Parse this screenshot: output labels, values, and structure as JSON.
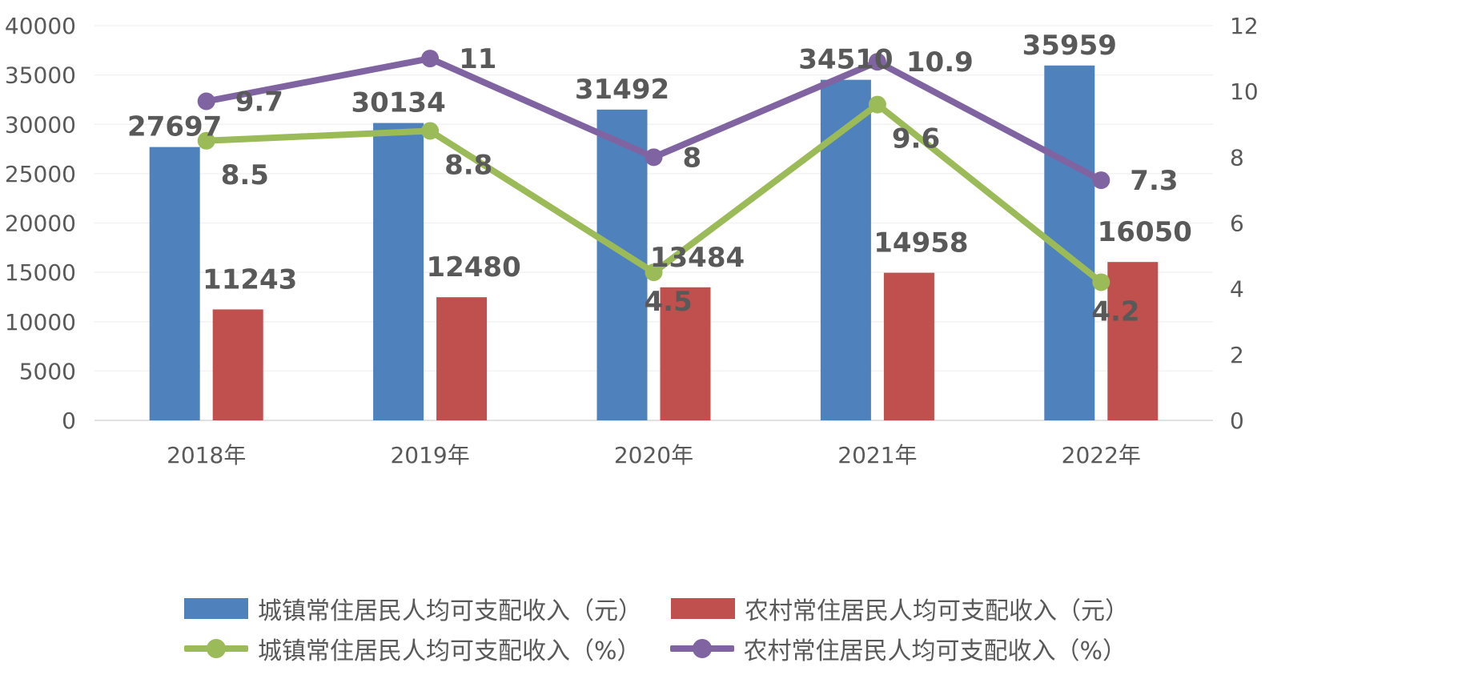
{
  "chart_data": {
    "type": "bar",
    "categories": [
      "2018年",
      "2019年",
      "2020年",
      "2021年",
      "2022年"
    ],
    "ylim": [
      0,
      40000
    ],
    "y2lim": [
      0,
      12
    ],
    "yticks": [
      "0",
      "5000",
      "10000",
      "15000",
      "20000",
      "25000",
      "30000",
      "35000",
      "40000"
    ],
    "y2ticks": [
      "0",
      "2",
      "4",
      "6",
      "8",
      "10",
      "12"
    ],
    "grid": true,
    "legend_position": "bottom",
    "series": [
      {
        "name": "城镇常住居民人均可支配收入（元）",
        "type": "bar",
        "axis": "left",
        "color": "#4f81bd",
        "values": [
          27697,
          30134,
          31492,
          34510,
          35959
        ]
      },
      {
        "name": "农村常住居民人均可支配收入（元）",
        "type": "bar",
        "axis": "left",
        "color": "#c0504d",
        "values": [
          11243,
          12480,
          13484,
          14958,
          16050
        ]
      },
      {
        "name": "城镇常住居民人均可支配收入（%）",
        "type": "line",
        "axis": "right",
        "color": "#9bbb59",
        "values": [
          8.5,
          8.8,
          4.5,
          9.6,
          4.2
        ]
      },
      {
        "name": "农村常住居民人均可支配收入（%）",
        "type": "line",
        "axis": "right",
        "color": "#8064a2",
        "values": [
          9.7,
          11,
          8,
          10.9,
          7.3
        ]
      }
    ]
  }
}
